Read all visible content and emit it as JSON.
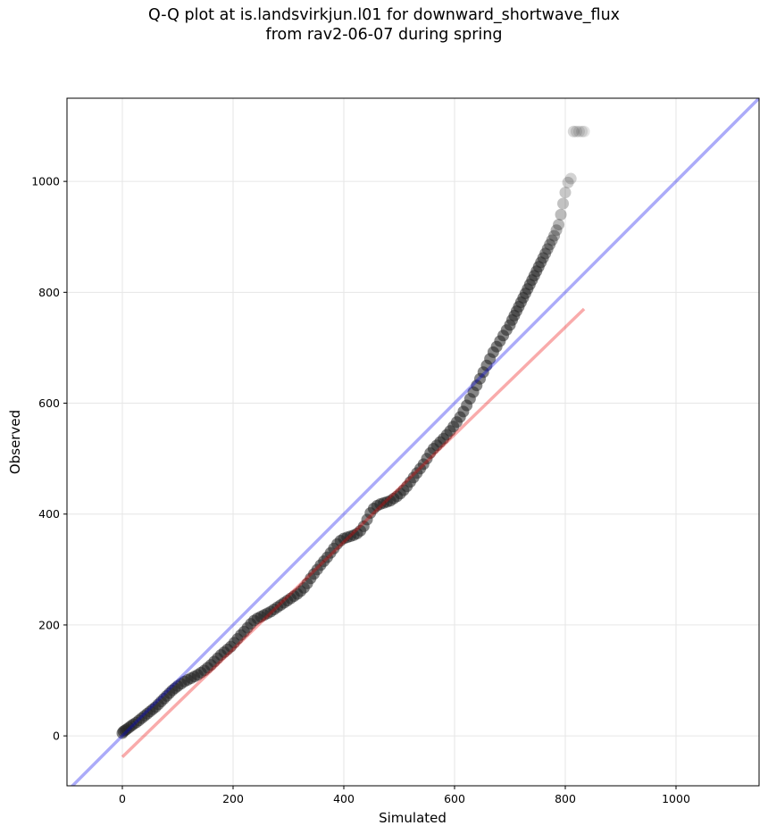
{
  "chart_data": {
    "type": "scatter",
    "title": "Q-Q plot at is.landsvirkjun.l01 for downward_shortwave_flux",
    "subtitle": "from rav2-06-07 during spring",
    "xlabel": "Simulated",
    "ylabel": "Observed",
    "xlim": [
      -100,
      1150
    ],
    "ylim": [
      -90,
      1150
    ],
    "xticks": [
      0,
      200,
      400,
      600,
      800,
      1000
    ],
    "yticks": [
      0,
      200,
      400,
      600,
      800,
      1000
    ],
    "grid": true,
    "legend": "none",
    "series": [
      {
        "kind": "points",
        "color": "#222222",
        "x": [
          0,
          2,
          5,
          8,
          12,
          16,
          20,
          25,
          30,
          35,
          40,
          45,
          50,
          55,
          60,
          65,
          70,
          75,
          80,
          85,
          90,
          95,
          100,
          106,
          112,
          118,
          124,
          130,
          136,
          142,
          148,
          154,
          160,
          166,
          172,
          178,
          184,
          190,
          196,
          202,
          208,
          214,
          220,
          226,
          232,
          238,
          244,
          250,
          256,
          262,
          268,
          274,
          280,
          286,
          292,
          298,
          304,
          310,
          316,
          322,
          328,
          334,
          340,
          346,
          352,
          358,
          364,
          370,
          376,
          382,
          388,
          394,
          400,
          406,
          412,
          418,
          424,
          430,
          436,
          442,
          448,
          454,
          460,
          466,
          472,
          478,
          484,
          490,
          496,
          502,
          508,
          514,
          520,
          526,
          532,
          538,
          544,
          550,
          556,
          562,
          568,
          574,
          580,
          586,
          592,
          598,
          604,
          610,
          616,
          622,
          628,
          634,
          640,
          646,
          652,
          658,
          664,
          670,
          676,
          682,
          688,
          694,
          700,
          704,
          708,
          712,
          716,
          720,
          724,
          728,
          732,
          736,
          740,
          744,
          748,
          752,
          756,
          760,
          764,
          768,
          772,
          776,
          780,
          784,
          788,
          792,
          796,
          800,
          805,
          810,
          815,
          820,
          825,
          830,
          834
        ],
        "y": [
          5,
          8,
          10,
          12,
          15,
          18,
          21,
          24,
          28,
          32,
          36,
          40,
          44,
          48,
          52,
          57,
          62,
          67,
          72,
          77,
          82,
          86,
          90,
          94,
          98,
          101,
          104,
          107,
          110,
          114,
          118,
          123,
          128,
          134,
          140,
          146,
          151,
          156,
          161,
          168,
          175,
          182,
          188,
          195,
          202,
          208,
          212,
          215,
          218,
          221,
          224,
          228,
          232,
          236,
          240,
          244,
          248,
          252,
          256,
          261,
          267,
          275,
          284,
          292,
          300,
          308,
          315,
          322,
          330,
          338,
          346,
          352,
          356,
          358,
          360,
          362,
          365,
          370,
          378,
          390,
          402,
          410,
          415,
          418,
          420,
          422,
          424,
          428,
          432,
          437,
          443,
          450,
          458,
          466,
          474,
          482,
          490,
          500,
          510,
          518,
          524,
          530,
          536,
          543,
          550,
          558,
          566,
          575,
          585,
          596,
          608,
          620,
          632,
          644,
          656,
          668,
          680,
          692,
          702,
          712,
          722,
          732,
          741,
          750,
          758,
          766,
          774,
          782,
          790,
          798,
          806,
          814,
          822,
          830,
          838,
          846,
          854,
          862,
          870,
          878,
          886,
          894,
          902,
          912,
          922,
          940,
          960,
          980,
          998,
          1005,
          1090,
          1090,
          1090,
          1090,
          1090
        ],
        "opacity_by_density": true
      },
      {
        "kind": "line",
        "color": "#0000ee",
        "x": [
          -100,
          1150
        ],
        "y": [
          -100,
          1150
        ]
      },
      {
        "kind": "line",
        "color": "#ee0000",
        "x": [
          0,
          834
        ],
        "y": [
          -38,
          770
        ]
      }
    ]
  }
}
